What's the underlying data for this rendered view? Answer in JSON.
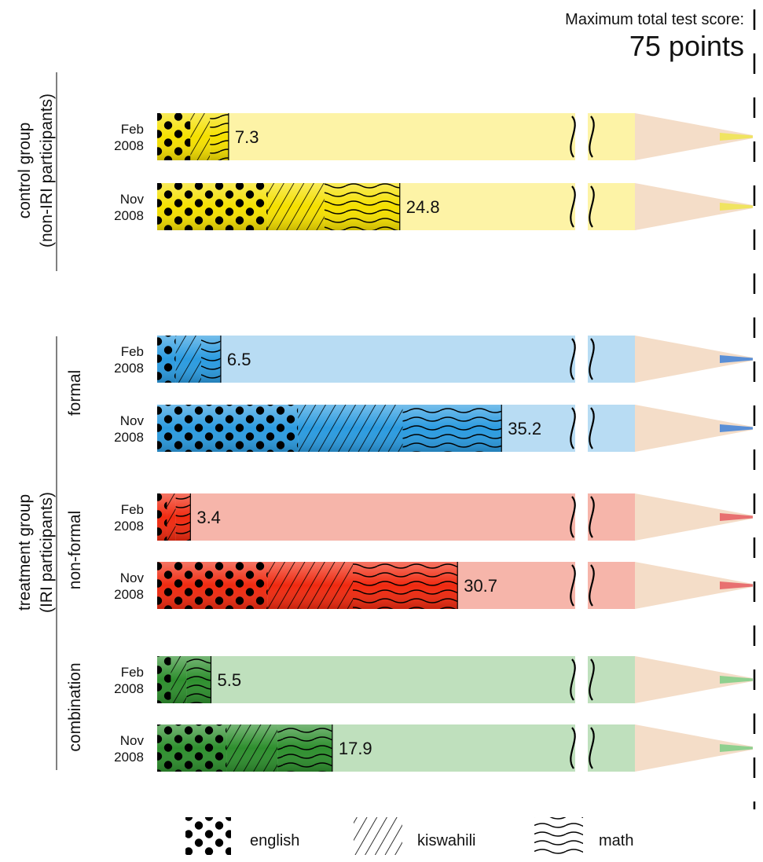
{
  "header": {
    "max_label": "Maximum total test score:",
    "max_value": "75 points"
  },
  "chart_data": {
    "type": "bar",
    "stacked": true,
    "orientation": "horizontal",
    "max_total": 75,
    "axis_break": true,
    "segments": [
      "english",
      "kiswahili",
      "math"
    ],
    "groups": [
      {
        "label": "control group",
        "sublabel": "(non-IRI participants)",
        "subgroups": [
          {
            "label": "",
            "color": "#f5e000",
            "light_color": "#fdf3a6",
            "tip_color": "#f0e460",
            "bars": [
              {
                "date_line1": "Feb",
                "date_line2": "2008",
                "total": 7.3,
                "english": 3.4,
                "kiswahili": 2.0,
                "math": 1.9
              },
              {
                "date_line1": "Nov",
                "date_line2": "2008",
                "total": 24.8,
                "english": 11.3,
                "kiswahili": 5.8,
                "math": 7.7
              }
            ]
          }
        ]
      },
      {
        "label": "treatment group",
        "sublabel": "(IRI participants)",
        "subgroups": [
          {
            "label": "formal",
            "color": "#2b9be0",
            "light_color": "#b8dcf3",
            "tip_color": "#5a8fd6",
            "bars": [
              {
                "date_line1": "Feb",
                "date_line2": "2008",
                "total": 6.5,
                "english": 1.9,
                "kiswahili": 2.6,
                "math": 2.0
              },
              {
                "date_line1": "Nov",
                "date_line2": "2008",
                "total": 35.2,
                "english": 14.4,
                "kiswahili": 10.7,
                "math": 10.1
              }
            ]
          },
          {
            "label": "non-formal",
            "color": "#f02a10",
            "light_color": "#f6b5aa",
            "tip_color": "#e87070",
            "bars": [
              {
                "date_line1": "Feb",
                "date_line2": "2008",
                "total": 3.4,
                "english": 1.0,
                "kiswahili": 0.9,
                "math": 1.5
              },
              {
                "date_line1": "Nov",
                "date_line2": "2008",
                "total": 30.7,
                "english": 11.3,
                "kiswahili": 8.7,
                "math": 10.7
              }
            ]
          },
          {
            "label": "combination",
            "color": "#2e8f2e",
            "light_color": "#bfe0bd",
            "tip_color": "#8fd08f",
            "bars": [
              {
                "date_line1": "Feb",
                "date_line2": "2008",
                "total": 5.5,
                "english": 1.4,
                "kiswahili": 1.6,
                "math": 2.5
              },
              {
                "date_line1": "Nov",
                "date_line2": "2008",
                "total": 17.9,
                "english": 7.1,
                "kiswahili": 5.2,
                "math": 5.6
              }
            ]
          }
        ]
      }
    ],
    "legend": [
      {
        "key": "english",
        "label": "english"
      },
      {
        "key": "kiswahili",
        "label": "kiswahili"
      },
      {
        "key": "math",
        "label": "math"
      }
    ]
  }
}
